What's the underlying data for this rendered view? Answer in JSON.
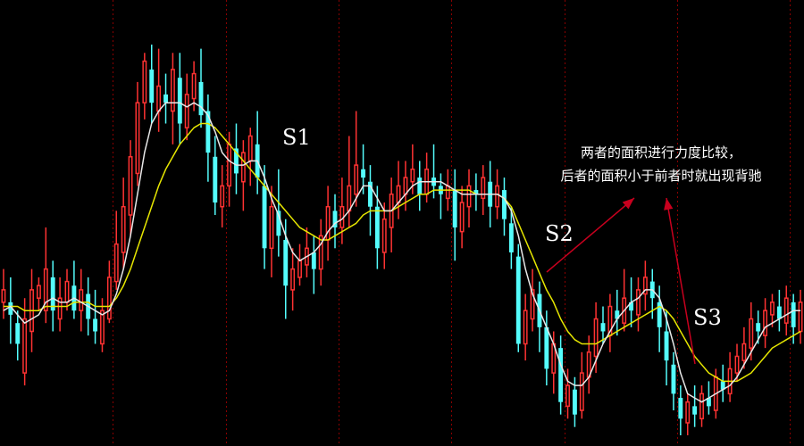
{
  "chart_data": {
    "type": "candlestick",
    "title": "",
    "grid": "vertical dotted",
    "ylim": [
      0,
      100
    ],
    "colors": {
      "up": "#ff3232",
      "down": "#54fcfc",
      "ma_fast": "#e8e8e8",
      "ma_slow": "#e6e600",
      "grid": "#8a0000",
      "arrow": "#c8001e"
    },
    "candles": [
      [
        32,
        35,
        40,
        28
      ],
      [
        32,
        29,
        38,
        22
      ],
      [
        27,
        22,
        30,
        18
      ],
      [
        15,
        28,
        33,
        12
      ],
      [
        25,
        35,
        40,
        20
      ],
      [
        33,
        36,
        38,
        30
      ],
      [
        30,
        40,
        50,
        27
      ],
      [
        38,
        30,
        42,
        25
      ],
      [
        28,
        33,
        38,
        25
      ],
      [
        32,
        37,
        40,
        30
      ],
      [
        36,
        30,
        42,
        28
      ],
      [
        30,
        35,
        40,
        25
      ],
      [
        34,
        28,
        38,
        24
      ],
      [
        28,
        25,
        35,
        22
      ],
      [
        22,
        30,
        33,
        20
      ],
      [
        28,
        38,
        42,
        27
      ],
      [
        37,
        46,
        54,
        35
      ],
      [
        44,
        55,
        62,
        40
      ],
      [
        53,
        67,
        71,
        48
      ],
      [
        63,
        80,
        85,
        60
      ],
      [
        80,
        90,
        92,
        76
      ],
      [
        88,
        80,
        94,
        75
      ],
      [
        78,
        84,
        93,
        73
      ],
      [
        82,
        80,
        87,
        75
      ],
      [
        78,
        88,
        92,
        70
      ],
      [
        86,
        75,
        92,
        70
      ],
      [
        74,
        82,
        87,
        71
      ],
      [
        81,
        87,
        90,
        78
      ],
      [
        85,
        77,
        93,
        74
      ],
      [
        78,
        68,
        82,
        61
      ],
      [
        67,
        56,
        72,
        53
      ],
      [
        55,
        60,
        65,
        50
      ],
      [
        60,
        70,
        73,
        55
      ],
      [
        69,
        63,
        75,
        58
      ],
      [
        61,
        68,
        71,
        54
      ],
      [
        66,
        72,
        74,
        60
      ],
      [
        70,
        62,
        78,
        58
      ],
      [
        60,
        45,
        65,
        40
      ],
      [
        45,
        55,
        60,
        38
      ],
      [
        54,
        48,
        64,
        43
      ],
      [
        47,
        36,
        52,
        28
      ],
      [
        35,
        40,
        45,
        30
      ],
      [
        38,
        42,
        46,
        36
      ],
      [
        41,
        45,
        50,
        38
      ],
      [
        44,
        40,
        48,
        34
      ],
      [
        40,
        48,
        52,
        36
      ],
      [
        47,
        55,
        60,
        42
      ],
      [
        54,
        50,
        58,
        45
      ],
      [
        50,
        55,
        62,
        46
      ],
      [
        54,
        60,
        72,
        50
      ],
      [
        58,
        65,
        78,
        55
      ],
      [
        64,
        62,
        70,
        58
      ],
      [
        61,
        55,
        65,
        48
      ],
      [
        55,
        45,
        60,
        40
      ],
      [
        44,
        52,
        56,
        40
      ],
      [
        50,
        58,
        62,
        44
      ],
      [
        56,
        60,
        66,
        52
      ],
      [
        58,
        62,
        66,
        54
      ],
      [
        61,
        64,
        70,
        58
      ],
      [
        62,
        58,
        66,
        54
      ],
      [
        58,
        64,
        68,
        56
      ],
      [
        62,
        60,
        70,
        57
      ],
      [
        60,
        58,
        63,
        52
      ],
      [
        57,
        60,
        64,
        54
      ],
      [
        59,
        50,
        64,
        42
      ],
      [
        49,
        56,
        60,
        45
      ],
      [
        55,
        60,
        64,
        50
      ],
      [
        59,
        58,
        63,
        54
      ],
      [
        57,
        62,
        65,
        53
      ],
      [
        61,
        55,
        66,
        50
      ],
      [
        55,
        60,
        64,
        52
      ],
      [
        59,
        52,
        62,
        48
      ],
      [
        51,
        44,
        55,
        40
      ],
      [
        43,
        22,
        46,
        20
      ],
      [
        22,
        30,
        34,
        18
      ],
      [
        28,
        35,
        40,
        25
      ],
      [
        34,
        26,
        37,
        20
      ],
      [
        26,
        16,
        30,
        12
      ],
      [
        15,
        22,
        25,
        10
      ],
      [
        21,
        8,
        24,
        5
      ],
      [
        7,
        12,
        16,
        4
      ],
      [
        11,
        5,
        14,
        2
      ],
      [
        6,
        15,
        20,
        4
      ],
      [
        14,
        20,
        24,
        10
      ],
      [
        19,
        28,
        32,
        15
      ],
      [
        27,
        25,
        31,
        22
      ],
      [
        24,
        31,
        34,
        20
      ],
      [
        30,
        28,
        35,
        24
      ],
      [
        27,
        33,
        40,
        25
      ],
      [
        32,
        30,
        38,
        26
      ],
      [
        29,
        35,
        38,
        25
      ],
      [
        34,
        38,
        42,
        30
      ],
      [
        37,
        33,
        40,
        28
      ],
      [
        32,
        26,
        36,
        20
      ],
      [
        25,
        18,
        30,
        12
      ],
      [
        17,
        10,
        20,
        6
      ],
      [
        9,
        4,
        12,
        0
      ],
      [
        3,
        8,
        10,
        0
      ],
      [
        7,
        5,
        12,
        2
      ],
      [
        4,
        10,
        12,
        2
      ],
      [
        9,
        7,
        13,
        5
      ],
      [
        6,
        14,
        16,
        4
      ],
      [
        13,
        11,
        17,
        8
      ],
      [
        10,
        16,
        20,
        8
      ],
      [
        15,
        19,
        22,
        13
      ],
      [
        18,
        22,
        26,
        16
      ],
      [
        21,
        28,
        32,
        18
      ],
      [
        27,
        25,
        30,
        22
      ],
      [
        24,
        30,
        33,
        21
      ],
      [
        29,
        32,
        34,
        26
      ],
      [
        31,
        28,
        35,
        25
      ],
      [
        27,
        33,
        36,
        24
      ],
      [
        32,
        26,
        34,
        22
      ],
      [
        25,
        32,
        35,
        22
      ]
    ],
    "ma_fast": [
      30,
      31,
      29,
      27,
      28,
      29,
      32,
      33,
      32,
      32,
      33,
      32,
      31,
      30,
      29,
      30,
      34,
      40,
      48,
      58,
      68,
      75,
      78,
      80,
      80,
      80,
      79,
      80,
      79,
      77,
      73,
      68,
      66,
      65,
      65,
      66,
      66,
      62,
      57,
      53,
      48,
      44,
      42,
      43,
      44,
      46,
      49,
      51,
      52,
      54,
      57,
      60,
      60,
      57,
      54,
      54,
      56,
      58,
      60,
      61,
      61,
      61,
      61,
      60,
      59,
      58,
      58,
      58,
      58,
      58,
      58,
      57,
      54,
      48,
      40,
      34,
      30,
      26,
      22,
      17,
      13,
      12,
      12,
      14,
      18,
      22,
      25,
      28,
      30,
      32,
      33,
      35,
      35,
      33,
      28,
      22,
      15,
      10,
      9,
      8,
      9,
      10,
      11,
      12,
      14,
      17,
      20,
      23,
      26,
      27,
      28,
      29,
      30,
      30
    ],
    "ma_slow": [
      31,
      31,
      31,
      30,
      30,
      30,
      31,
      31,
      31,
      31,
      32,
      32,
      32,
      31,
      31,
      31,
      33,
      36,
      40,
      45,
      50,
      55,
      60,
      64,
      67,
      70,
      72,
      74,
      75,
      75,
      74,
      72,
      70,
      68,
      66,
      64,
      62,
      60,
      58,
      56,
      54,
      52,
      50,
      49,
      48,
      47,
      47,
      48,
      49,
      50,
      51,
      53,
      54,
      54,
      54,
      54,
      55,
      56,
      57,
      58,
      58,
      59,
      59,
      59,
      59,
      59,
      59,
      58,
      58,
      58,
      58,
      57,
      55,
      51,
      47,
      43,
      39,
      35,
      32,
      28,
      25,
      23,
      22,
      22,
      22,
      23,
      24,
      25,
      26,
      27,
      28,
      29,
      30,
      31,
      30,
      28,
      25,
      22,
      19,
      17,
      15,
      14,
      13,
      13,
      13,
      14,
      15,
      17,
      19,
      21,
      22,
      23,
      24,
      25
    ],
    "labels": {
      "s1": "S1",
      "s2": "S2",
      "s3": "S3",
      "note_line1": "两者的面积进行力度比较，",
      "note_line2": "后者的面积小于前者时就出现背驰"
    }
  }
}
